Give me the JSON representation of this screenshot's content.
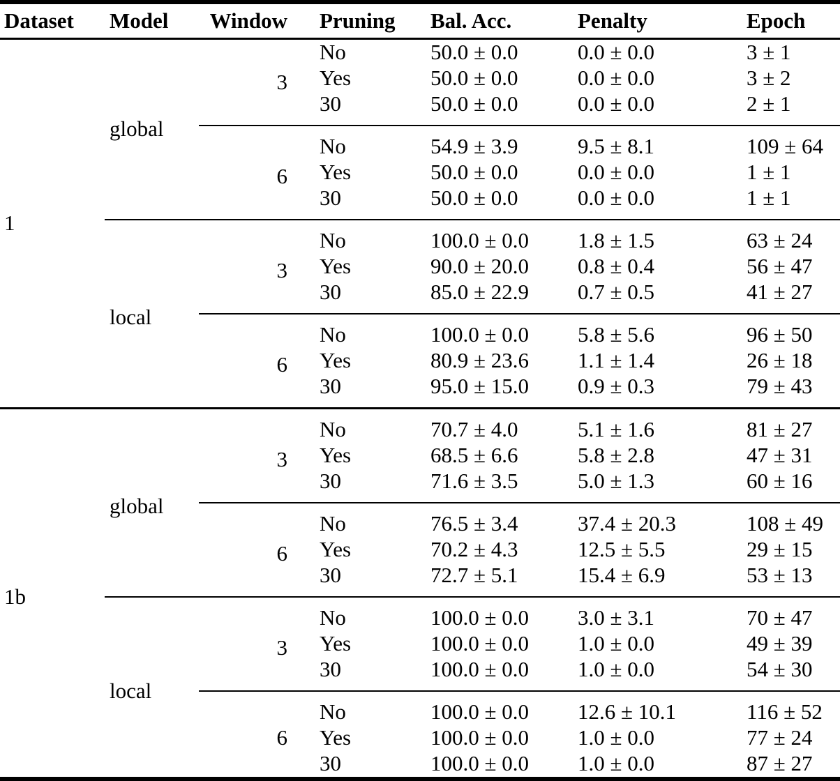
{
  "page": {
    "background": "#ffffff",
    "text_color": "#000000",
    "rule_color": "#000000",
    "plus_minus_symbol": "±"
  },
  "table": {
    "columns": [
      "Dataset",
      "Model",
      "Window",
      "Pruning",
      "Bal. Acc.",
      "Penalty",
      "Epoch"
    ],
    "datasets": [
      {
        "dataset": "1",
        "models": [
          {
            "model": "global",
            "windows": [
              {
                "window": "3",
                "rows": [
                  {
                    "pruning": "No",
                    "bal_acc": "50.0 ± 0.0",
                    "penalty": "0.0 ± 0.0",
                    "epoch": "3 ± 1"
                  },
                  {
                    "pruning": "Yes",
                    "bal_acc": "50.0 ± 0.0",
                    "penalty": "0.0 ± 0.0",
                    "epoch": "3 ± 2"
                  },
                  {
                    "pruning": "30",
                    "bal_acc": "50.0 ± 0.0",
                    "penalty": "0.0 ± 0.0",
                    "epoch": "2 ± 1"
                  }
                ]
              },
              {
                "window": "6",
                "rows": [
                  {
                    "pruning": "No",
                    "bal_acc": "54.9 ± 3.9",
                    "penalty": "9.5 ± 8.1",
                    "epoch": "109 ± 64"
                  },
                  {
                    "pruning": "Yes",
                    "bal_acc": "50.0 ± 0.0",
                    "penalty": "0.0 ± 0.0",
                    "epoch": "1 ± 1"
                  },
                  {
                    "pruning": "30",
                    "bal_acc": "50.0 ± 0.0",
                    "penalty": "0.0 ± 0.0",
                    "epoch": "1 ± 1"
                  }
                ]
              }
            ]
          },
          {
            "model": "local",
            "windows": [
              {
                "window": "3",
                "rows": [
                  {
                    "pruning": "No",
                    "bal_acc": "100.0 ± 0.0",
                    "penalty": "1.8 ± 1.5",
                    "epoch": "63 ± 24"
                  },
                  {
                    "pruning": "Yes",
                    "bal_acc": "90.0 ± 20.0",
                    "penalty": "0.8 ± 0.4",
                    "epoch": "56 ± 47"
                  },
                  {
                    "pruning": "30",
                    "bal_acc": "85.0 ± 22.9",
                    "penalty": "0.7 ± 0.5",
                    "epoch": "41 ± 27"
                  }
                ]
              },
              {
                "window": "6",
                "rows": [
                  {
                    "pruning": "No",
                    "bal_acc": "100.0 ± 0.0",
                    "penalty": "5.8 ± 5.6",
                    "epoch": "96 ± 50"
                  },
                  {
                    "pruning": "Yes",
                    "bal_acc": "80.9 ± 23.6",
                    "penalty": "1.1 ± 1.4",
                    "epoch": "26 ± 18"
                  },
                  {
                    "pruning": "30",
                    "bal_acc": "95.0 ± 15.0",
                    "penalty": "0.9 ± 0.3",
                    "epoch": "79 ± 43"
                  }
                ]
              }
            ]
          }
        ]
      },
      {
        "dataset": "1b",
        "models": [
          {
            "model": "global",
            "windows": [
              {
                "window": "3",
                "rows": [
                  {
                    "pruning": "No",
                    "bal_acc": "70.7 ± 4.0",
                    "penalty": "5.1 ± 1.6",
                    "epoch": "81 ± 27"
                  },
                  {
                    "pruning": "Yes",
                    "bal_acc": "68.5 ± 6.6",
                    "penalty": "5.8 ± 2.8",
                    "epoch": "47 ± 31"
                  },
                  {
                    "pruning": "30",
                    "bal_acc": "71.6 ± 3.5",
                    "penalty": "5.0 ± 1.3",
                    "epoch": "60 ± 16"
                  }
                ]
              },
              {
                "window": "6",
                "rows": [
                  {
                    "pruning": "No",
                    "bal_acc": "76.5 ± 3.4",
                    "penalty": "37.4 ± 20.3",
                    "epoch": "108 ± 49"
                  },
                  {
                    "pruning": "Yes",
                    "bal_acc": "70.2 ± 4.3",
                    "penalty": "12.5 ± 5.5",
                    "epoch": "29 ± 15"
                  },
                  {
                    "pruning": "30",
                    "bal_acc": "72.7 ± 5.1",
                    "penalty": "15.4 ± 6.9",
                    "epoch": "53 ± 13"
                  }
                ]
              }
            ]
          },
          {
            "model": "local",
            "windows": [
              {
                "window": "3",
                "rows": [
                  {
                    "pruning": "No",
                    "bal_acc": "100.0 ± 0.0",
                    "penalty": "3.0 ± 3.1",
                    "epoch": "70 ± 47"
                  },
                  {
                    "pruning": "Yes",
                    "bal_acc": "100.0 ± 0.0",
                    "penalty": "1.0 ± 0.0",
                    "epoch": "49 ± 39"
                  },
                  {
                    "pruning": "30",
                    "bal_acc": "100.0 ± 0.0",
                    "penalty": "1.0 ± 0.0",
                    "epoch": "54 ± 30"
                  }
                ]
              },
              {
                "window": "6",
                "rows": [
                  {
                    "pruning": "No",
                    "bal_acc": "100.0 ± 0.0",
                    "penalty": "12.6 ± 10.1",
                    "epoch": "116 ± 52"
                  },
                  {
                    "pruning": "Yes",
                    "bal_acc": "100.0 ± 0.0",
                    "penalty": "1.0 ± 0.0",
                    "epoch": "77 ± 24"
                  },
                  {
                    "pruning": "30",
                    "bal_acc": "100.0 ± 0.0",
                    "penalty": "1.0 ± 0.0",
                    "epoch": "87 ± 27"
                  }
                ]
              }
            ]
          }
        ]
      }
    ]
  }
}
